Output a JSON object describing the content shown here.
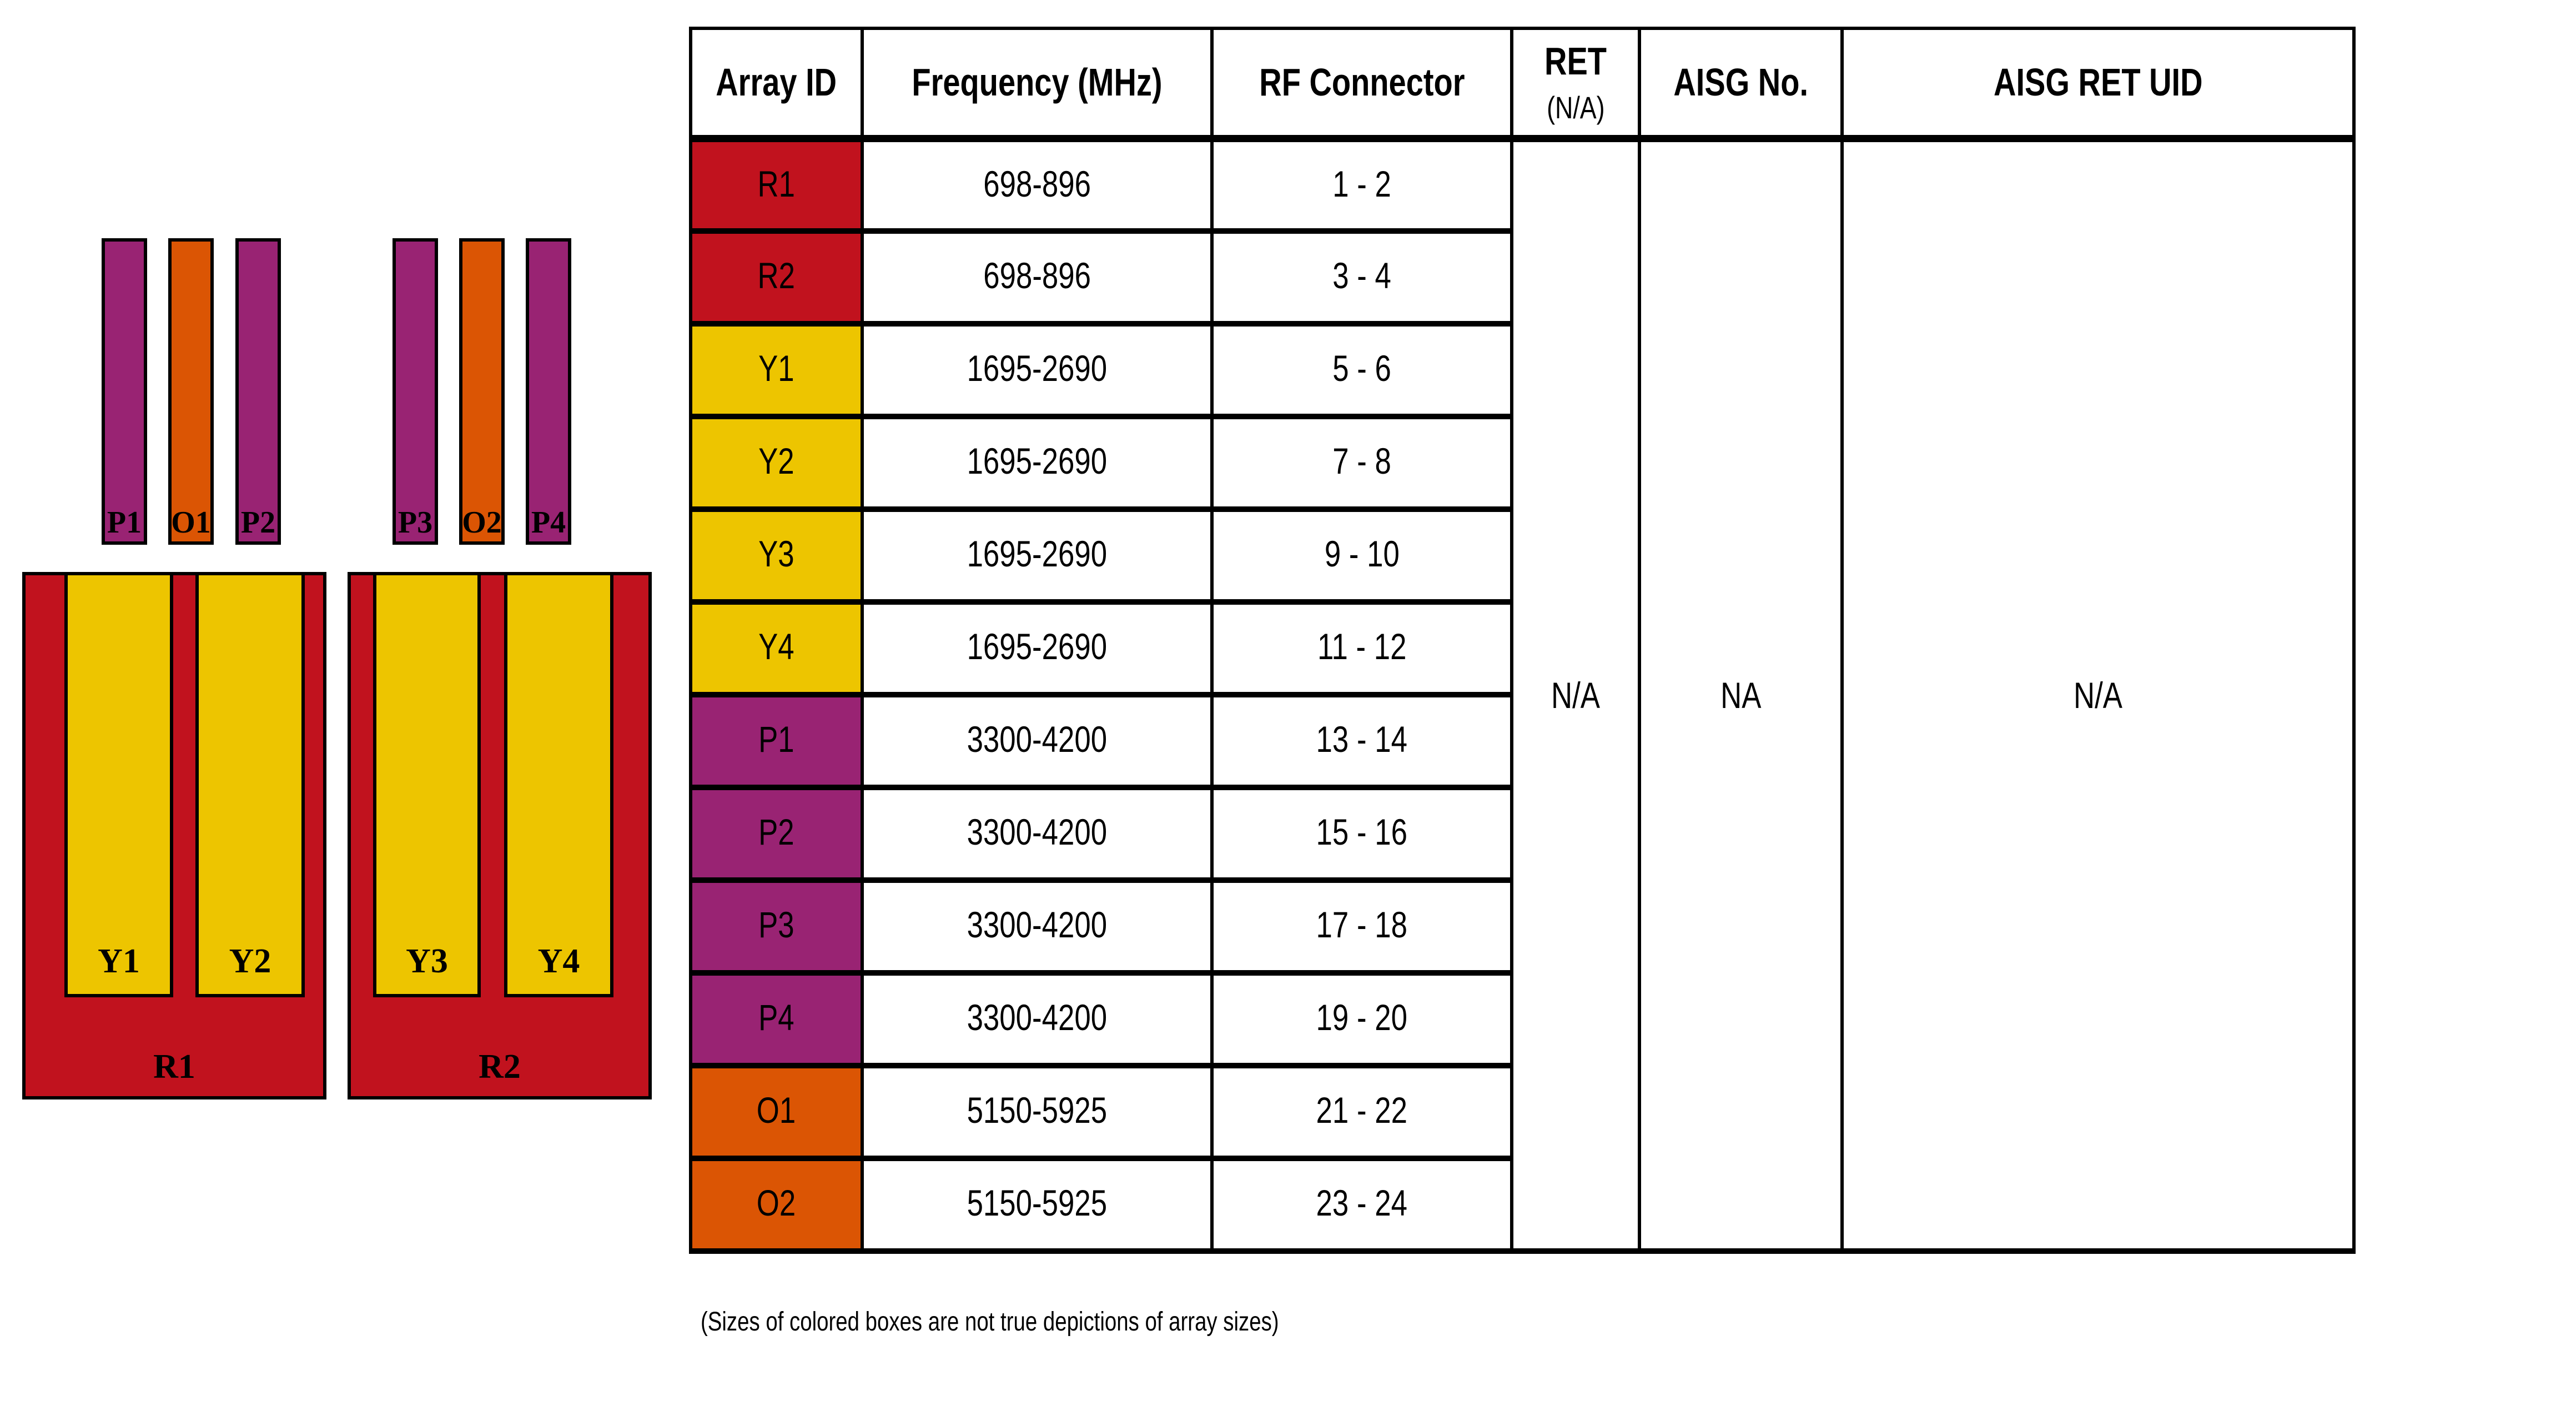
{
  "diagram": {
    "caption": "(Sizes of colored boxes are not true depictions of array sizes)",
    "top_arrays": [
      {
        "label": "P1",
        "color": "#992373"
      },
      {
        "label": "O1",
        "color": "#DB5504"
      },
      {
        "label": "P2",
        "color": "#992373"
      },
      {
        "label": "P3",
        "color": "#992373"
      },
      {
        "label": "O2",
        "color": "#DB5504"
      },
      {
        "label": "P4",
        "color": "#992373"
      }
    ],
    "panels": [
      {
        "label": "R1",
        "color": "#C1121E",
        "sub_arrays": [
          {
            "label": "Y1",
            "color": "#EDC500"
          },
          {
            "label": "Y2",
            "color": "#EDC500"
          }
        ]
      },
      {
        "label": "R2",
        "color": "#C1121E",
        "sub_arrays": [
          {
            "label": "Y3",
            "color": "#EDC500"
          },
          {
            "label": "Y4",
            "color": "#EDC500"
          }
        ]
      }
    ]
  },
  "table": {
    "headers": {
      "array_id": "Array ID",
      "frequency": "Frequency (MHz)",
      "rf_connector": "RF Connector",
      "ret_line1": "RET",
      "ret_line2": "(N/A)",
      "aisg_no": "AISG No.",
      "aisg_ret_uid": "AISG RET UID"
    },
    "rows": [
      {
        "array_id": "R1",
        "color": "#C1121E",
        "frequency": "698-896",
        "rf_connector": "1 - 2"
      },
      {
        "array_id": "R2",
        "color": "#C1121E",
        "frequency": "698-896",
        "rf_connector": "3 - 4"
      },
      {
        "array_id": "Y1",
        "color": "#EDC500",
        "frequency": "1695-2690",
        "rf_connector": "5 - 6"
      },
      {
        "array_id": "Y2",
        "color": "#EDC500",
        "frequency": "1695-2690",
        "rf_connector": "7 - 8"
      },
      {
        "array_id": "Y3",
        "color": "#EDC500",
        "frequency": "1695-2690",
        "rf_connector": "9 - 10"
      },
      {
        "array_id": "Y4",
        "color": "#EDC500",
        "frequency": "1695-2690",
        "rf_connector": "11 - 12"
      },
      {
        "array_id": "P1",
        "color": "#992373",
        "frequency": "3300-4200",
        "rf_connector": "13 - 14"
      },
      {
        "array_id": "P2",
        "color": "#992373",
        "frequency": "3300-4200",
        "rf_connector": "15 - 16"
      },
      {
        "array_id": "P3",
        "color": "#992373",
        "frequency": "3300-4200",
        "rf_connector": "17 - 18"
      },
      {
        "array_id": "P4",
        "color": "#992373",
        "frequency": "3300-4200",
        "rf_connector": "19 - 20"
      },
      {
        "array_id": "O1",
        "color": "#DB5504",
        "frequency": "5150-5925",
        "rf_connector": "21 - 22"
      },
      {
        "array_id": "O2",
        "color": "#DB5504",
        "frequency": "5150-5925",
        "rf_connector": "23 - 24"
      }
    ],
    "spanning": {
      "ret": "N/A",
      "aisg_no": "NA",
      "aisg_ret_uid": "N/A"
    }
  }
}
